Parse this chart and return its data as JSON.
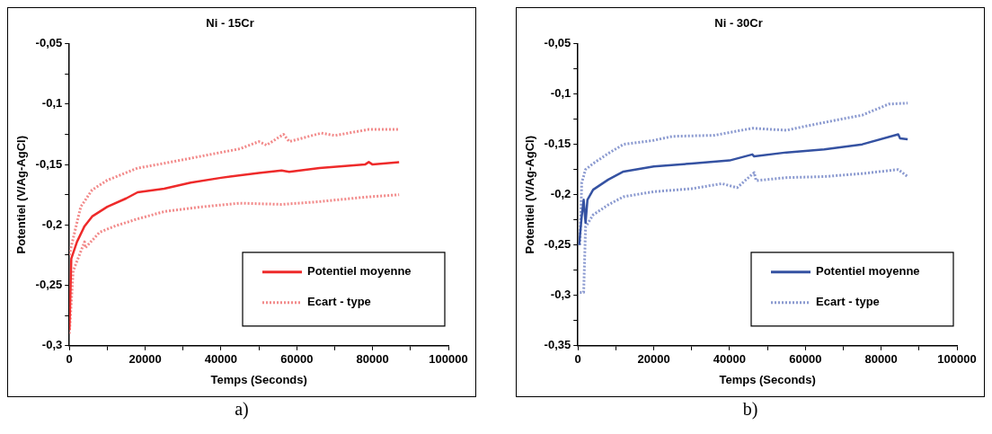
{
  "chart_data": [
    {
      "type": "line",
      "title": "Ni - 15Cr",
      "xlabel": "Temps (Seconds)",
      "ylabel": "Potentiel (V/Ag-AgCl)",
      "xlim": [
        0,
        100000
      ],
      "xticks": [
        0,
        {
          "value": 10000,
          "label": null
        },
        20000,
        {
          "value": 30000,
          "label": null
        },
        40000,
        {
          "value": 50000,
          "label": null
        },
        60000,
        {
          "value": 70000,
          "label": null
        },
        80000,
        {
          "value": 90000,
          "label": null
        },
        100000
      ],
      "ylim": [
        -0.3,
        -0.05
      ],
      "yticks": [
        {
          "value": -0.3,
          "label": "-0,3"
        },
        {
          "value": -0.275,
          "label": null
        },
        {
          "value": -0.25,
          "label": "-0,25"
        },
        {
          "value": -0.225,
          "label": null
        },
        {
          "value": -0.2,
          "label": "-0,2"
        },
        {
          "value": -0.175,
          "label": null
        },
        {
          "value": -0.15,
          "label": "-0,15"
        },
        {
          "value": -0.125,
          "label": null
        },
        {
          "value": -0.1,
          "label": "-0,1"
        },
        {
          "value": -0.075,
          "label": null
        },
        {
          "value": -0.05,
          "label": "-0,05"
        }
      ],
      "legend": "bottom right",
      "grid": false,
      "marker": "none",
      "annotations": [
        "a)"
      ],
      "series": [
        {
          "name": "Potentiel moyenne",
          "color": "#ee2a2a",
          "line_style": "solid",
          "x": [
            0,
            500,
            2000,
            4000,
            6000,
            10000,
            15000,
            18000,
            25000,
            32000,
            40000,
            50000,
            56000,
            58000,
            66000,
            78000,
            79000,
            80000,
            87000
          ],
          "values": [
            -0.287,
            -0.228,
            -0.214,
            -0.201,
            -0.193,
            -0.185,
            -0.178,
            -0.173,
            -0.17,
            -0.165,
            -0.161,
            -0.157,
            -0.155,
            -0.156,
            -0.153,
            -0.15,
            -0.148,
            -0.15,
            -0.148
          ]
        },
        {
          "name": "Ecart - type",
          "color": "#f28a8a",
          "line_style": "dotted",
          "x": [
            0,
            1000,
            3000,
            6000,
            10000,
            18000,
            25000,
            35000,
            45000,
            50000,
            52000,
            56500,
            58000,
            66500,
            70000,
            79000,
            87000
          ],
          "values": [
            -0.225,
            -0.211,
            -0.185,
            -0.171,
            -0.163,
            -0.153,
            -0.149,
            -0.143,
            -0.137,
            -0.131,
            -0.134,
            -0.125,
            -0.131,
            -0.124,
            -0.126,
            -0.121,
            -0.121
          ]
        },
        {
          "color": "#f28a8a",
          "line_style": "dotted",
          "x": [
            0,
            1000,
            3000,
            4000,
            4200,
            8000,
            12000,
            18000,
            25000,
            35000,
            45000,
            56000,
            65000,
            78000,
            87000
          ],
          "values": [
            -0.29,
            -0.238,
            -0.222,
            -0.214,
            -0.219,
            -0.206,
            -0.201,
            -0.195,
            -0.189,
            -0.185,
            -0.182,
            -0.183,
            -0.181,
            -0.177,
            -0.175
          ]
        }
      ]
    },
    {
      "type": "line",
      "title": "Ni - 30Cr",
      "xlabel": "Temps (Seconds)",
      "ylabel": "Potentiel (V/Ag-AgCl)",
      "xlim": [
        0,
        100000
      ],
      "xticks": [
        0,
        {
          "value": 10000,
          "label": null
        },
        20000,
        {
          "value": 30000,
          "label": null
        },
        40000,
        {
          "value": 50000,
          "label": null
        },
        60000,
        {
          "value": 70000,
          "label": null
        },
        80000,
        {
          "value": 90000,
          "label": null
        },
        100000
      ],
      "ylim": [
        -0.35,
        -0.05
      ],
      "yticks": [
        {
          "value": -0.35,
          "label": "-0,35"
        },
        {
          "value": -0.325,
          "label": null
        },
        {
          "value": -0.3,
          "label": "-0,3"
        },
        {
          "value": -0.275,
          "label": null
        },
        {
          "value": -0.25,
          "label": "-0,25"
        },
        {
          "value": -0.225,
          "label": null
        },
        {
          "value": -0.2,
          "label": "-0,2"
        },
        {
          "value": -0.175,
          "label": null
        },
        {
          "value": -0.15,
          "label": "-0,15"
        },
        {
          "value": -0.125,
          "label": null
        },
        {
          "value": -0.1,
          "label": "-0,1"
        },
        {
          "value": -0.075,
          "label": null
        },
        {
          "value": -0.05,
          "label": "-0,05"
        }
      ],
      "legend": "bottom right",
      "grid": false,
      "marker": "none",
      "annotations": [
        "b)"
      ],
      "series": [
        {
          "name": "Potentiel moyenne",
          "color": "#3552a2",
          "line_style": "solid",
          "x": [
            300,
            1000,
            1500,
            2000,
            2500,
            4000,
            8000,
            12000,
            20000,
            30000,
            40000,
            46000,
            46500,
            55000,
            65000,
            75000,
            84500,
            85000,
            87000
          ],
          "values": [
            -0.25,
            -0.221,
            -0.205,
            -0.228,
            -0.205,
            -0.195,
            -0.185,
            -0.177,
            -0.172,
            -0.169,
            -0.166,
            -0.16,
            -0.162,
            -0.158,
            -0.155,
            -0.15,
            -0.14,
            -0.144,
            -0.145
          ]
        },
        {
          "name": "Ecart - type",
          "color": "#8b9ad0",
          "line_style": "dotted",
          "x": [
            500,
            1000,
            2000,
            4000,
            8000,
            12000,
            20000,
            25000,
            36000,
            46000,
            55000,
            60000,
            68000,
            75000,
            82000,
            87000
          ],
          "values": [
            -0.25,
            -0.188,
            -0.175,
            -0.169,
            -0.159,
            -0.15,
            -0.146,
            -0.142,
            -0.141,
            -0.134,
            -0.136,
            -0.132,
            -0.126,
            -0.121,
            -0.11,
            -0.109
          ]
        },
        {
          "color": "#8b9ad0",
          "line_style": "dotted",
          "x": [
            500,
            1500,
            2000,
            4000,
            8000,
            12000,
            20000,
            30000,
            38000,
            42000,
            46500,
            47000,
            55000,
            65000,
            75000,
            84500,
            87000
          ],
          "values": [
            -0.297,
            -0.297,
            -0.232,
            -0.22,
            -0.21,
            -0.202,
            -0.197,
            -0.194,
            -0.189,
            -0.193,
            -0.178,
            -0.186,
            -0.183,
            -0.182,
            -0.179,
            -0.175,
            -0.182
          ]
        }
      ]
    }
  ]
}
